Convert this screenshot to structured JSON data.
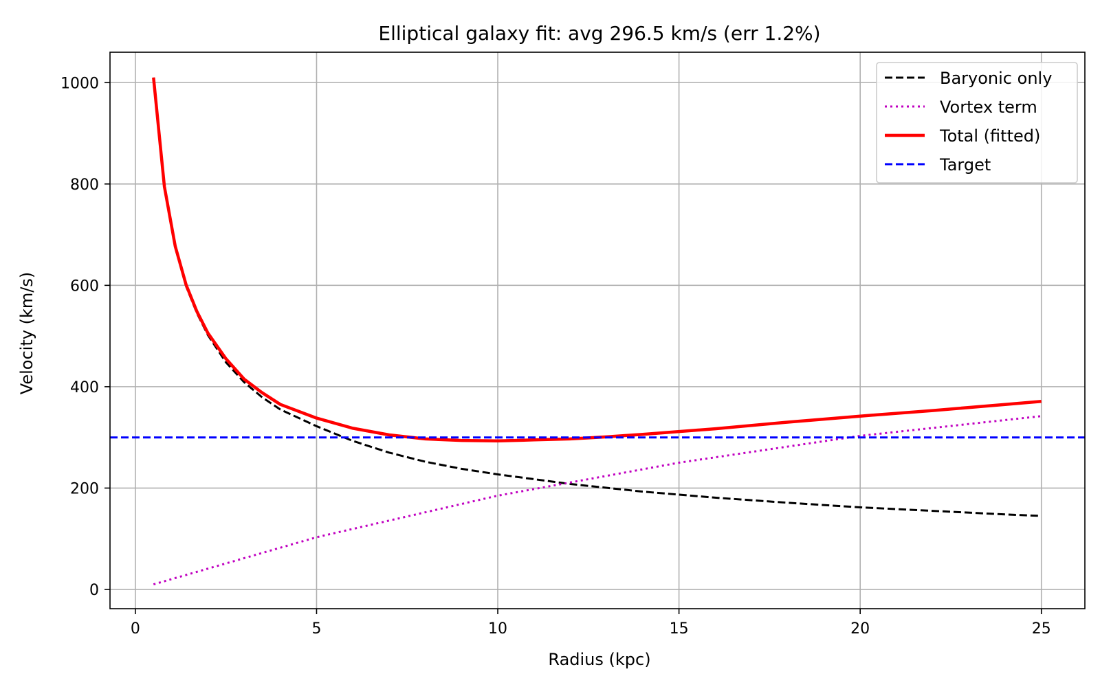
{
  "chart_data": {
    "type": "line",
    "title": "Elliptical galaxy fit: avg 296.5 km/s (err 1.2%)",
    "xlabel": "Radius (kpc)",
    "ylabel": "Velocity (km/s)",
    "xlim": [
      -0.7,
      26.2
    ],
    "ylim": [
      -38,
      1060
    ],
    "xticks": [
      0,
      5,
      10,
      15,
      20,
      25
    ],
    "yticks": [
      0,
      200,
      400,
      600,
      800,
      1000
    ],
    "grid": true,
    "legend_position": "upper-right",
    "series": [
      {
        "name": "Baryonic only",
        "color": "#000000",
        "style": "dashed",
        "x": [
          0.5,
          0.8,
          1.1,
          1.4,
          1.7,
          2.0,
          2.5,
          3.0,
          3.5,
          4.0,
          5.0,
          6.0,
          7.0,
          8.0,
          9.0,
          10.0,
          12.0,
          14.0,
          16.0,
          18.0,
          20.0,
          22.0,
          24.0,
          25.0
        ],
        "y": [
          1010,
          795,
          675,
          598,
          545,
          502,
          448,
          409,
          379,
          355,
          322,
          293,
          270,
          252,
          238,
          227,
          208,
          193,
          181,
          171,
          162,
          155,
          148,
          145
        ]
      },
      {
        "name": "Vortex term",
        "color": "#c000c0",
        "style": "dotted",
        "x": [
          0.5,
          5.0,
          10.0,
          15.0,
          20.0,
          25.0
        ],
        "y": [
          10,
          103,
          185,
          250,
          303,
          342
        ]
      },
      {
        "name": "Total (fitted)",
        "color": "#ff0000",
        "style": "solid",
        "x": [
          0.5,
          0.8,
          1.1,
          1.4,
          1.7,
          2.0,
          2.5,
          3.0,
          3.5,
          4.0,
          5.0,
          6.0,
          7.0,
          8.0,
          9.0,
          10.0,
          11.0,
          12.0,
          13.0,
          14.0,
          16.0,
          18.0,
          20.0,
          22.0,
          24.0,
          25.0
        ],
        "y": [
          1010,
          795,
          677,
          601,
          548,
          506,
          455,
          415,
          388,
          365,
          338,
          318,
          305,
          297,
          294,
          293,
          295,
          297,
          301,
          306,
          317,
          330,
          342,
          353,
          365,
          371
        ]
      },
      {
        "name": "Target",
        "color": "#0000ff",
        "style": "dashed",
        "x": [
          -0.7,
          26.2
        ],
        "y": [
          300,
          300
        ]
      }
    ]
  }
}
